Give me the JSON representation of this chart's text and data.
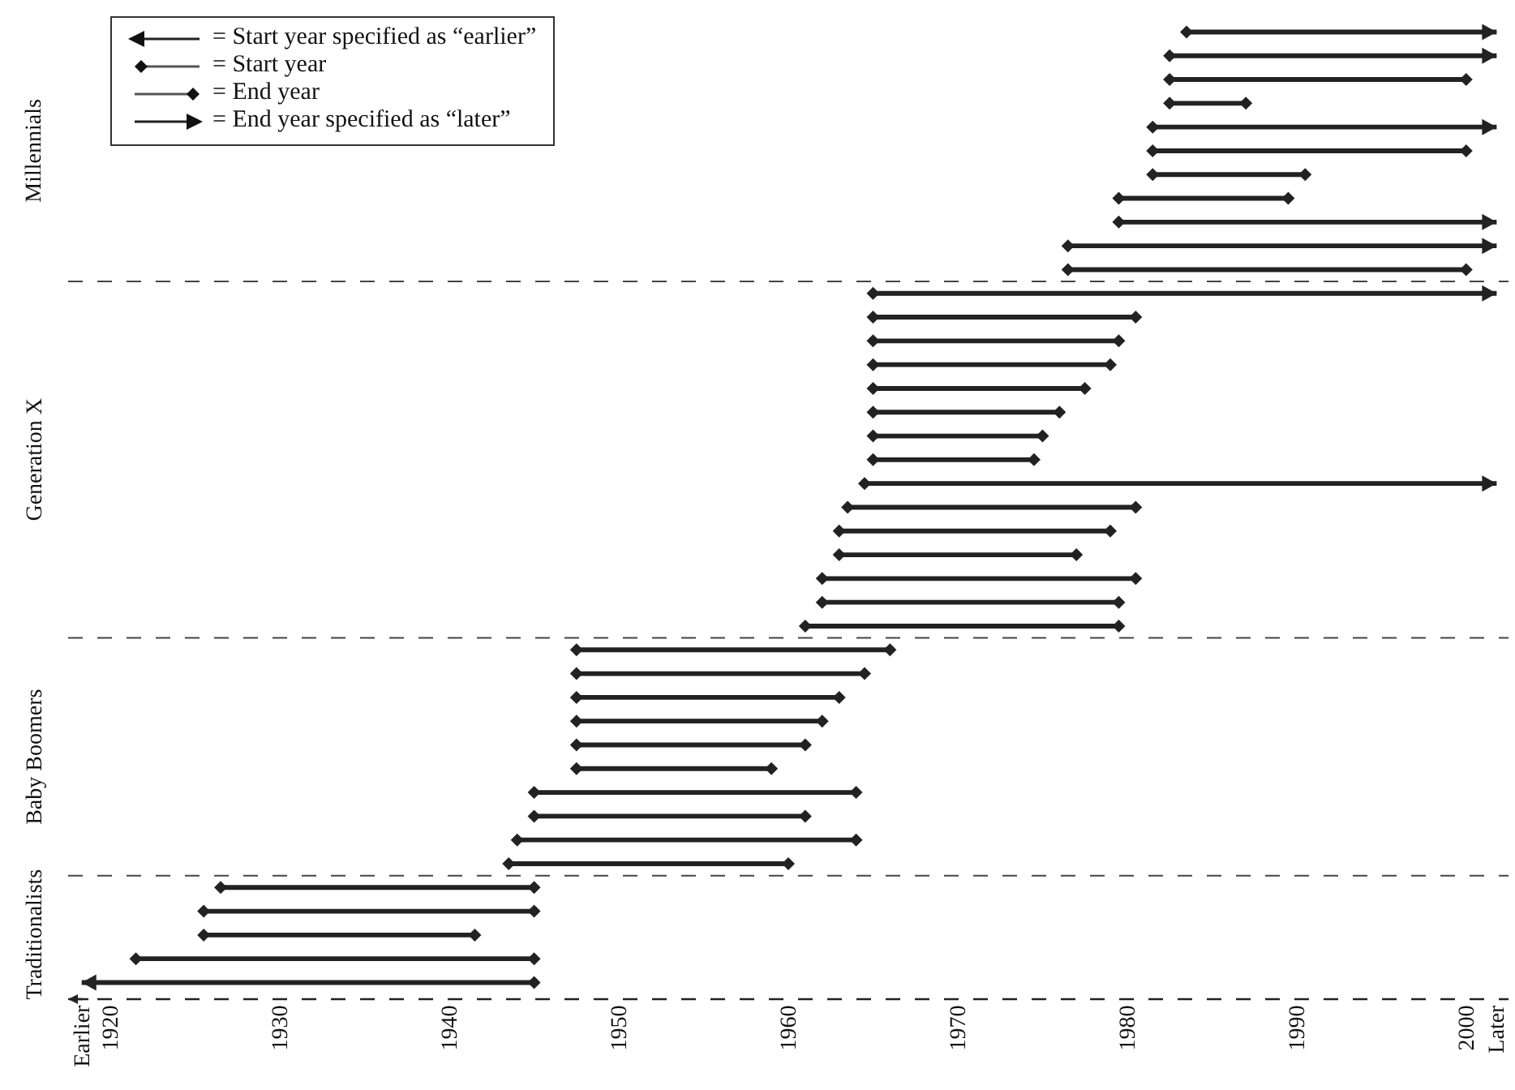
{
  "chart_data": {
    "type": "bar",
    "orientation": "horizontal",
    "color": "#222222",
    "marker": "diamond",
    "categories": [
      null,
      null,
      null,
      null,
      null,
      null,
      null,
      null,
      null,
      null,
      null,
      null,
      null,
      null,
      null,
      null,
      null,
      null,
      null,
      null,
      null,
      null,
      null,
      null,
      null,
      null,
      null,
      null,
      null,
      null,
      null,
      null,
      null,
      null,
      null,
      null,
      null,
      null,
      null,
      null,
      null
    ],
    "base": [
      1983.5,
      1982.5,
      1982.5,
      1982.5,
      1981.5,
      1981.5,
      1981.5,
      1979.5,
      1979.5,
      1976.5,
      1976.5,
      1965,
      1965,
      1965,
      1965,
      1965,
      1965,
      1965,
      1965,
      1964.5,
      1963.5,
      1963,
      1963,
      1962,
      1962,
      1961,
      1947.5,
      1947.5,
      1947.5,
      1947.5,
      1947.5,
      1947.5,
      1945,
      1945,
      1944,
      1943.5,
      1926.5,
      1925.5,
      1925.5,
      1921.5,
      1918.3
    ],
    "values": [
      18.3,
      19.3,
      17.5,
      4.5,
      20.3,
      18.5,
      9,
      10,
      22.3,
      25.3,
      23.5,
      36.8,
      15.5,
      14.5,
      14,
      12.5,
      11,
      10,
      9.5,
      37.3,
      17,
      16,
      14,
      18.5,
      17.5,
      18.5,
      18.5,
      17,
      15.5,
      14.5,
      13.5,
      11.5,
      19,
      16,
      20,
      16.5,
      18.5,
      19.5,
      16,
      23.5,
      26.7
    ],
    "xlim": [
      1917.5,
      2002.5
    ],
    "xticks": [
      {
        "value": 1918.3,
        "label": "Earlier"
      },
      1920,
      1930,
      1940,
      1950,
      1960,
      1970,
      1980,
      1990,
      2000,
      {
        "value": 2001.8,
        "label": "Later"
      }
    ],
    "annotations": [
      "= Start year specified as “earlier”",
      "= Start year",
      "= End year",
      "= End year specified as “later”",
      "Millennials",
      "Generation X",
      "Baby Boomers",
      "Traditionalists"
    ],
    "grid": false
  }
}
